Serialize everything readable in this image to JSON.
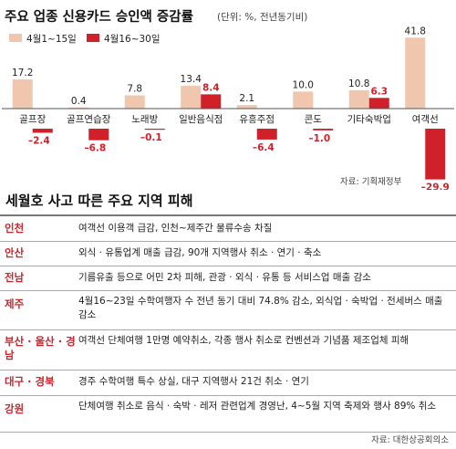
{
  "chart_data": {
    "type": "bar",
    "title": "주요 업종 신용카드 승인액 증감률",
    "title_unit": "(단위: %, 전년동기비)",
    "categories": [
      "골프장",
      "골프연습장",
      "노래방",
      "일반음식점",
      "유흥주점",
      "콘도",
      "기타숙박업",
      "여객선"
    ],
    "series": [
      {
        "name": "4월1~15일",
        "color": "#f0c7ae",
        "values": [
          17.2,
          0.4,
          7.8,
          13.4,
          2.1,
          10.0,
          10.8,
          41.8
        ],
        "labels": [
          "17.2",
          "0.4",
          "7.8",
          "13.4",
          "2.1",
          "10.0",
          "10.8",
          "41.8"
        ]
      },
      {
        "name": "4월16~30일",
        "color": "#d0212b",
        "values": [
          -2.4,
          -6.8,
          -0.1,
          8.4,
          -6.4,
          -1.0,
          6.3,
          -29.9
        ],
        "labels": [
          "–2.4",
          "–6.8",
          "–0.1",
          "8.4",
          "–6.4",
          "–1.0",
          "6.3",
          "–29.9"
        ]
      }
    ],
    "source": "자료: 기획재정부"
  },
  "table": {
    "title": "세월호 사고 따른 주요 지역 피해",
    "rows": [
      {
        "region": "인천",
        "impact": "여객선 이용객 급감, 인천~제주간 물류수송 차질"
      },
      {
        "region": "안산",
        "impact": "외식 · 유통업계 매출 급감, 90개 지역행사 취소 · 연기 · 축소"
      },
      {
        "region": "전남",
        "impact": "기름유출 등으로 어민 2차 피해, 관광 · 외식 · 유통 등 서비스업 매출 감소"
      },
      {
        "region": "제주",
        "impact": "4월16~23일 수학여행자 수 전년 동기 대비 74.8% 감소, 외식업 · 숙박업 · 전세버스 매출 감소"
      },
      {
        "region": "부산 · 울산 · 경남",
        "impact": "여객선 단체여행 1만명 예약취소, 각종 행사 취소로 컨벤션과 기념품 제조업체 피해"
      },
      {
        "region": "대구 · 경북",
        "impact": "경주 수학여행 특수 상실, 대구 지역행사 21건 취소 · 연기"
      },
      {
        "region": "강원",
        "impact": "단체여행 취소로 음식 · 숙박 · 레저 관련업계 경영난, 4~5월 지역 축제와 행사 89% 취소"
      }
    ],
    "source": "자료: 대한상공회의소"
  }
}
